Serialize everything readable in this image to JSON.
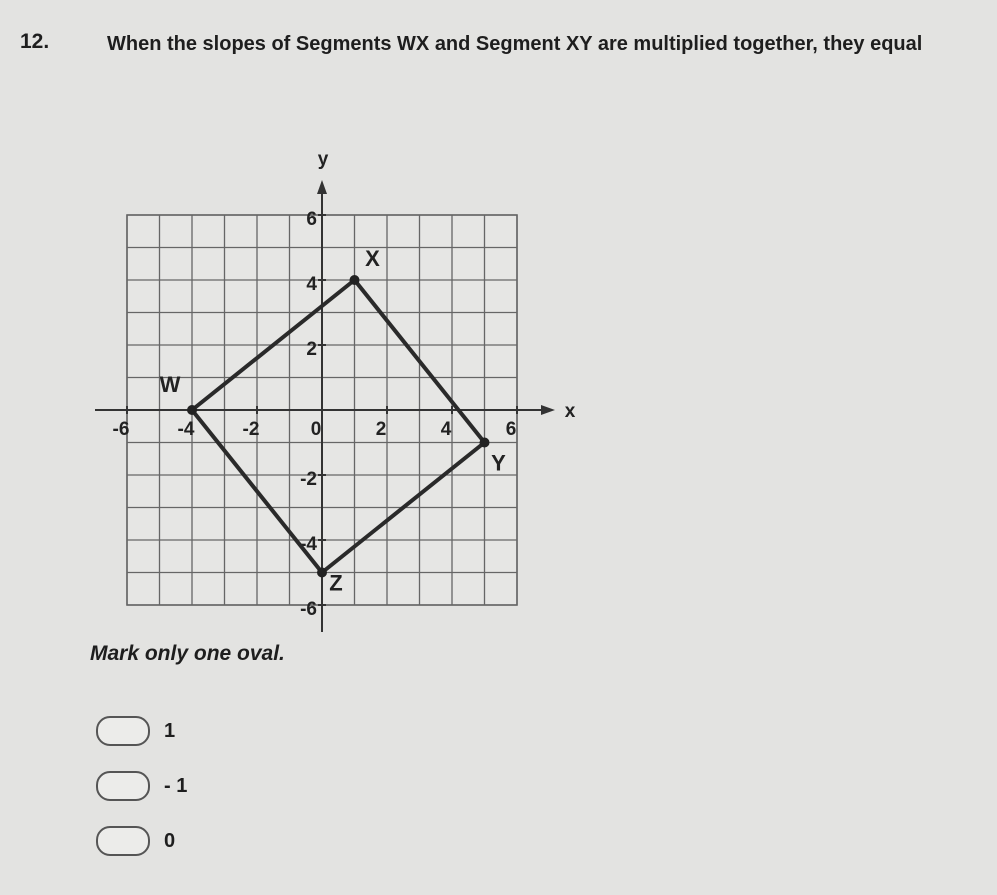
{
  "question": {
    "number": "12.",
    "text": "When the slopes of Segments WX and Segment XY are multiplied together, they equal"
  },
  "graph": {
    "x_label": "x",
    "y_label": "y",
    "xlim": [
      -6,
      6
    ],
    "ylim": [
      -6,
      6
    ],
    "xticks": [
      -6,
      -4,
      -2,
      0,
      2,
      4,
      6
    ],
    "yticks": [
      -6,
      -4,
      -2,
      2,
      4,
      6
    ],
    "points": [
      {
        "label": "W",
        "x": -4,
        "y": 0
      },
      {
        "label": "X",
        "x": 1,
        "y": 4
      },
      {
        "label": "Y",
        "x": 5,
        "y": -1
      },
      {
        "label": "Z",
        "x": 0,
        "y": -5
      }
    ]
  },
  "instruction": "Mark only one oval.",
  "options": [
    "1",
    "- 1",
    "0"
  ]
}
